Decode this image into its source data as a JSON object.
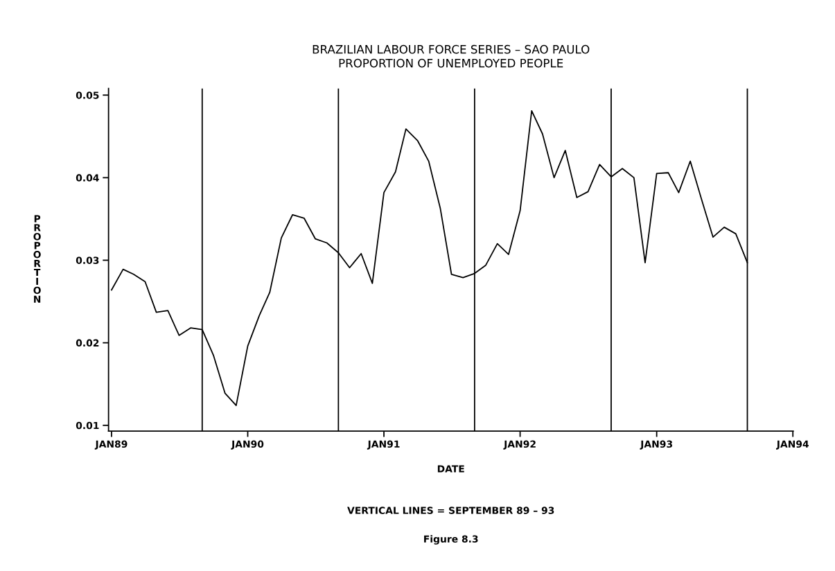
{
  "chart_data": {
    "type": "line",
    "title": "BRAZILIAN LABOUR FORCE SERIES – SAO PAULO\nPROPORTION OF UNEMPLOYED PEOPLE",
    "xlabel": "DATE",
    "ylabel": "PROPORTION",
    "annotations": [
      "VERTICAL LINES = SEPTEMBER 89 – 93",
      "Figure 8.3"
    ],
    "x": [
      "1989-01",
      "1989-02",
      "1989-03",
      "1989-04",
      "1989-05",
      "1989-06",
      "1989-07",
      "1989-08",
      "1989-09",
      "1989-10",
      "1989-11",
      "1989-12",
      "1990-01",
      "1990-02",
      "1990-03",
      "1990-04",
      "1990-05",
      "1990-06",
      "1990-07",
      "1990-08",
      "1990-09",
      "1990-10",
      "1990-11",
      "1990-12",
      "1991-01",
      "1991-02",
      "1991-03",
      "1991-04",
      "1991-05",
      "1991-06",
      "1991-07",
      "1991-08",
      "1991-09",
      "1991-10",
      "1991-11",
      "1991-12",
      "1992-01",
      "1992-02",
      "1992-03",
      "1992-04",
      "1992-05",
      "1992-06",
      "1992-07",
      "1992-08",
      "1992-09",
      "1992-10",
      "1992-11",
      "1992-12",
      "1993-01",
      "1993-02",
      "1993-03",
      "1993-04",
      "1993-05",
      "1993-06",
      "1993-07",
      "1993-08",
      "1993-09"
    ],
    "series": [
      {
        "color": "#000000",
        "values": [
          0.0264,
          0.0289,
          0.0283,
          0.0274,
          0.0237,
          0.0239,
          0.0209,
          0.0218,
          0.0216,
          0.0185,
          0.0139,
          0.0124,
          0.0196,
          0.0233,
          0.0261,
          0.0327,
          0.0355,
          0.0351,
          0.0326,
          0.0321,
          0.0309,
          0.0291,
          0.0308,
          0.0272,
          0.0382,
          0.0407,
          0.0459,
          0.0445,
          0.042,
          0.0363,
          0.0283,
          0.0279,
          0.0284,
          0.0294,
          0.032,
          0.0307,
          0.036,
          0.0481,
          0.0453,
          0.04,
          0.0433,
          0.0376,
          0.0383,
          0.0416,
          0.0401,
          0.0411,
          0.04,
          0.0297,
          0.0405,
          0.0406,
          0.0382,
          0.042,
          0.0374,
          0.0328,
          0.034,
          0.0332,
          0.0297
        ]
      }
    ],
    "xlim": [
      "1988-12-24",
      "1994-01-02"
    ],
    "ylim": [
      0.0093,
      0.0508
    ],
    "xticks": [
      {
        "value": "1989-01",
        "label": "JAN89"
      },
      {
        "value": "1990-01",
        "label": "JAN90"
      },
      {
        "value": "1991-01",
        "label": "JAN91"
      },
      {
        "value": "1992-01",
        "label": "JAN92"
      },
      {
        "value": "1993-01",
        "label": "JAN93"
      },
      {
        "value": "1994-01",
        "label": "JAN94"
      }
    ],
    "yticks": [
      0.01,
      0.02,
      0.03,
      0.04,
      0.05
    ],
    "ref_lines": [
      {
        "axis": "x",
        "value": "1989-09",
        "label": null,
        "color": "#000000"
      },
      {
        "axis": "x",
        "value": "1990-09",
        "label": null,
        "color": "#000000"
      },
      {
        "axis": "x",
        "value": "1991-09",
        "label": null,
        "color": "#000000"
      },
      {
        "axis": "x",
        "value": "1992-09",
        "label": null,
        "color": "#000000"
      },
      {
        "axis": "x",
        "value": "1993-09",
        "label": null,
        "color": "#000000"
      }
    ],
    "grid": false,
    "marker": "none",
    "line_style": "solid"
  }
}
